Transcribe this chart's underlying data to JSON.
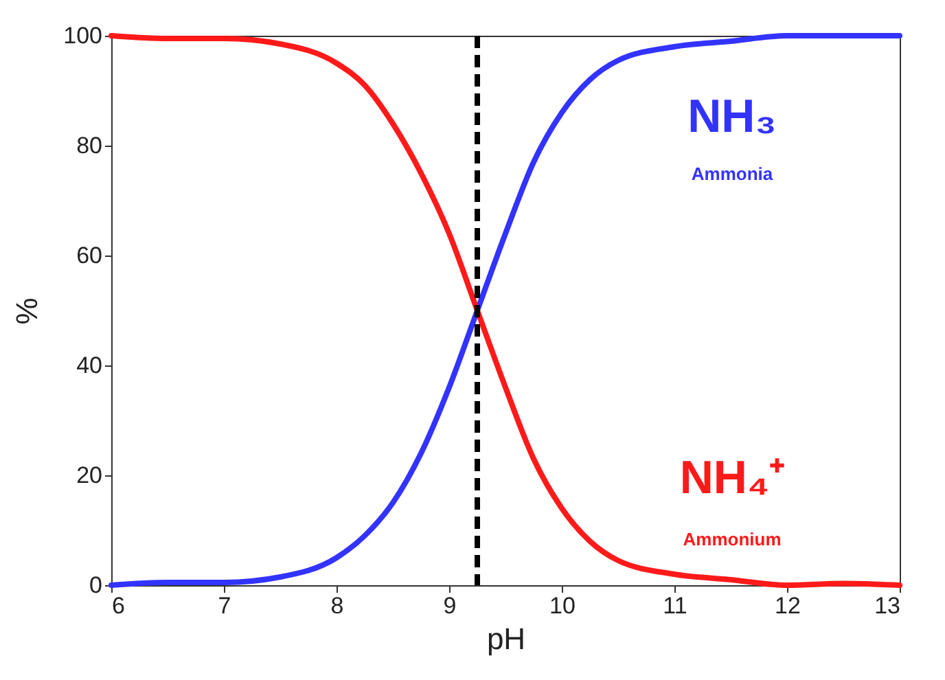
{
  "chart_data": {
    "type": "line",
    "xlabel": "pH",
    "ylabel": "%",
    "x": [
      6,
      6.5,
      7,
      7.5,
      8,
      8.25,
      8.5,
      8.75,
      9,
      9.25,
      9.5,
      9.75,
      10,
      10.25,
      10.5,
      11,
      11.5,
      12,
      12.5,
      13
    ],
    "series": [
      {
        "name": "NH₃",
        "color": "#3333ff",
        "values": [
          0,
          0.5,
          0.5,
          1.5,
          5,
          9,
          15,
          24,
          36,
          50,
          64,
          77,
          86,
          92,
          95.5,
          98,
          99,
          100,
          100,
          100
        ]
      },
      {
        "name": "NH₄⁺",
        "color": "#ff1a1a",
        "values": [
          100,
          99.5,
          99.5,
          98.5,
          95,
          91,
          84,
          75,
          64,
          50,
          36,
          23,
          14,
          8,
          4.5,
          2,
          1,
          0,
          0.3,
          0
        ]
      }
    ],
    "annotations": [
      "Ammonia",
      "Ammonium"
    ],
    "xlim": [
      6,
      13
    ],
    "xticks": [
      6,
      7,
      8,
      9,
      10,
      11,
      12,
      13
    ],
    "ylim": [
      0,
      100
    ],
    "yticks": [
      0,
      20,
      40,
      60,
      80,
      100
    ],
    "ref_lines": [
      {
        "axis": "x",
        "value": 9.25,
        "color": "#000000",
        "line_style": "dashed"
      }
    ],
    "grid": false
  }
}
